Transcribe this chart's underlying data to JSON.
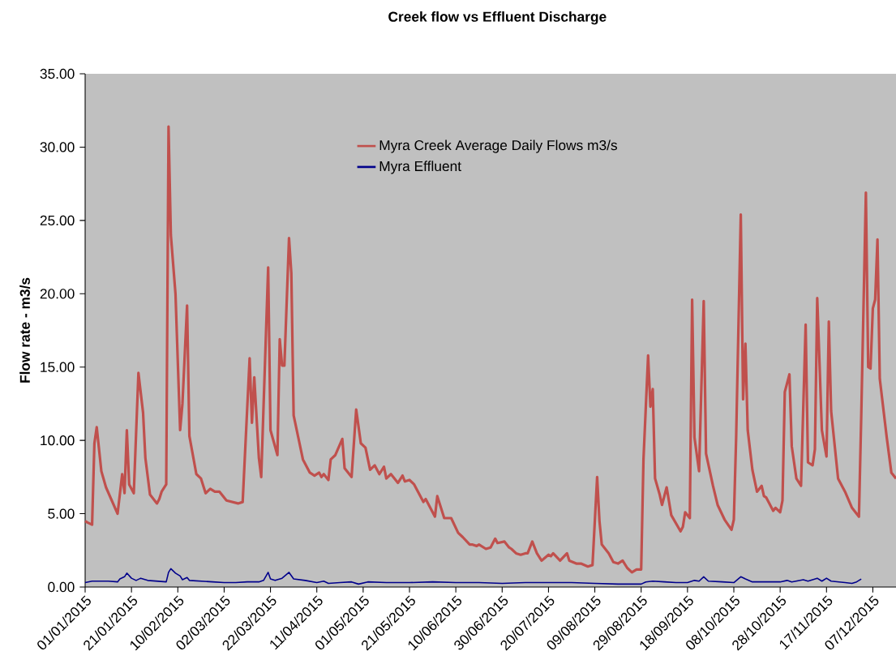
{
  "chart_data": {
    "type": "line",
    "title": "Creek flow vs Effluent Discharge",
    "ylabel": "Flow rate - m3/s",
    "xlim": [
      "2015-01-01",
      "2015-12-17"
    ],
    "ylim": [
      0,
      35
    ],
    "xticks": [
      {
        "value": "2015-01-01",
        "label": "01/01/2015"
      },
      {
        "value": "2015-01-21",
        "label": "21/01/2015"
      },
      {
        "value": "2015-02-10",
        "label": "10/02/2015"
      },
      {
        "value": "2015-03-02",
        "label": "02/03/2015"
      },
      {
        "value": "2015-03-22",
        "label": "22/03/2015"
      },
      {
        "value": "2015-04-11",
        "label": "11/04/2015"
      },
      {
        "value": "2015-05-01",
        "label": "01/05/2015"
      },
      {
        "value": "2015-05-21",
        "label": "21/05/2015"
      },
      {
        "value": "2015-06-10",
        "label": "10/06/2015"
      },
      {
        "value": "2015-06-30",
        "label": "30/06/2015"
      },
      {
        "value": "2015-07-20",
        "label": "20/07/2015"
      },
      {
        "value": "2015-08-09",
        "label": "09/08/2015"
      },
      {
        "value": "2015-08-29",
        "label": "29/08/2015"
      },
      {
        "value": "2015-09-18",
        "label": "18/09/2015"
      },
      {
        "value": "2015-10-08",
        "label": "08/10/2015"
      },
      {
        "value": "2015-10-28",
        "label": "28/10/2015"
      },
      {
        "value": "2015-11-17",
        "label": "17/11/2015"
      },
      {
        "value": "2015-12-07",
        "label": "07/12/2015"
      }
    ],
    "yticks": [
      {
        "value": 0,
        "label": "0.00"
      },
      {
        "value": 5,
        "label": "5.00"
      },
      {
        "value": 10,
        "label": "10.00"
      },
      {
        "value": 15,
        "label": "15.00"
      },
      {
        "value": 20,
        "label": "20.00"
      },
      {
        "value": 25,
        "label": "25.00"
      },
      {
        "value": 30,
        "label": "30.00"
      },
      {
        "value": 35,
        "label": "35.00"
      }
    ],
    "legend": "top",
    "grid": false,
    "series": [
      {
        "name": "Myra Creek Average Daily Flows m3/s",
        "color": "#c0504d",
        "x": [
          "2015-01-01",
          "2015-01-02",
          "2015-01-04",
          "2015-01-05",
          "2015-01-06",
          "2015-01-08",
          "2015-01-10",
          "2015-01-15",
          "2015-01-17",
          "2015-01-18",
          "2015-01-19",
          "2015-01-20",
          "2015-01-22",
          "2015-01-24",
          "2015-01-26",
          "2015-01-27",
          "2015-01-29",
          "2015-02-01",
          "2015-02-02",
          "2015-02-03",
          "2015-02-05",
          "2015-02-06",
          "2015-02-07",
          "2015-02-09",
          "2015-02-11",
          "2015-02-12",
          "2015-02-14",
          "2015-02-15",
          "2015-02-18",
          "2015-02-20",
          "2015-02-22",
          "2015-02-24",
          "2015-02-26",
          "2015-02-28",
          "2015-03-03",
          "2015-03-08",
          "2015-03-10",
          "2015-03-13",
          "2015-03-14",
          "2015-03-15",
          "2015-03-17",
          "2015-03-18",
          "2015-03-21",
          "2015-03-22",
          "2015-03-25",
          "2015-03-26",
          "2015-03-27",
          "2015-03-28",
          "2015-03-30",
          "2015-03-31",
          "2015-04-01",
          "2015-04-03",
          "2015-04-05",
          "2015-04-08",
          "2015-04-10",
          "2015-04-12",
          "2015-04-13",
          "2015-04-14",
          "2015-04-16",
          "2015-04-17",
          "2015-04-19",
          "2015-04-22",
          "2015-04-23",
          "2015-04-26",
          "2015-04-28",
          "2015-04-30",
          "2015-05-02",
          "2015-05-04",
          "2015-05-06",
          "2015-05-08",
          "2015-05-10",
          "2015-05-11",
          "2015-05-13",
          "2015-05-16",
          "2015-05-18",
          "2015-05-19",
          "2015-05-21",
          "2015-05-23",
          "2015-05-27",
          "2015-05-28",
          "2015-06-01",
          "2015-06-02",
          "2015-06-05",
          "2015-06-08",
          "2015-06-11",
          "2015-06-13",
          "2015-06-16",
          "2015-06-17",
          "2015-06-19",
          "2015-06-20",
          "2015-06-23",
          "2015-06-25",
          "2015-06-27",
          "2015-06-28",
          "2015-07-01",
          "2015-07-03",
          "2015-07-04",
          "2015-07-06",
          "2015-07-08",
          "2015-07-10",
          "2015-07-11",
          "2015-07-13",
          "2015-07-15",
          "2015-07-17",
          "2015-07-20",
          "2015-07-21",
          "2015-07-22",
          "2015-07-25",
          "2015-07-28",
          "2015-07-29",
          "2015-08-01",
          "2015-08-03",
          "2015-08-06",
          "2015-08-08",
          "2015-08-10",
          "2015-08-11",
          "2015-08-12",
          "2015-08-15",
          "2015-08-17",
          "2015-08-19",
          "2015-08-21",
          "2015-08-23",
          "2015-08-25",
          "2015-08-27",
          "2015-08-29",
          "2015-08-30",
          "2015-09-01",
          "2015-09-02",
          "2015-09-03",
          "2015-09-04",
          "2015-09-06",
          "2015-09-07",
          "2015-09-09",
          "2015-09-11",
          "2015-09-15",
          "2015-09-16",
          "2015-09-17",
          "2015-09-19",
          "2015-09-20",
          "2015-09-21",
          "2015-09-23",
          "2015-09-25",
          "2015-09-26",
          "2015-09-29",
          "2015-10-01",
          "2015-10-04",
          "2015-10-07",
          "2015-10-08",
          "2015-10-09",
          "2015-10-11",
          "2015-10-12",
          "2015-10-13",
          "2015-10-14",
          "2015-10-16",
          "2015-10-18",
          "2015-10-20",
          "2015-10-21",
          "2015-10-22",
          "2015-10-25",
          "2015-10-26",
          "2015-10-28",
          "2015-10-29",
          "2015-10-30",
          "2015-11-01",
          "2015-11-02",
          "2015-11-04",
          "2015-11-06",
          "2015-11-08",
          "2015-11-09",
          "2015-11-11",
          "2015-11-12",
          "2015-11-13",
          "2015-11-15",
          "2015-11-17",
          "2015-11-18",
          "2015-11-19",
          "2015-11-22",
          "2015-11-25",
          "2015-11-28",
          "2015-12-01",
          "2015-12-02",
          "2015-12-04",
          "2015-12-05",
          "2015-12-06",
          "2015-12-07",
          "2015-12-08",
          "2015-12-09",
          "2015-12-10",
          "2015-12-13",
          "2015-12-15",
          "2015-12-17"
        ],
        "values": [
          4.5,
          4.4,
          4.25,
          9.8,
          10.9,
          7.9,
          6.8,
          5.0,
          7.7,
          6.4,
          10.7,
          7.0,
          6.4,
          14.6,
          11.9,
          8.8,
          6.3,
          5.7,
          6.0,
          6.5,
          7.0,
          31.4,
          24.0,
          20.0,
          10.7,
          12.5,
          19.2,
          10.3,
          7.7,
          7.4,
          6.4,
          6.7,
          6.5,
          6.5,
          5.9,
          5.7,
          5.8,
          15.6,
          11.2,
          14.3,
          8.8,
          7.5,
          21.8,
          10.7,
          9.0,
          16.9,
          15.1,
          15.1,
          23.8,
          21.4,
          11.7,
          10.2,
          8.7,
          7.8,
          7.6,
          7.8,
          7.5,
          7.7,
          7.3,
          8.7,
          9.0,
          10.1,
          8.1,
          7.5,
          12.1,
          9.8,
          9.5,
          8.0,
          8.3,
          7.7,
          8.2,
          7.4,
          7.7,
          7.1,
          7.6,
          7.2,
          7.3,
          7.0,
          5.8,
          6.0,
          4.8,
          6.2,
          4.7,
          4.7,
          3.7,
          3.4,
          2.9,
          2.9,
          2.8,
          2.9,
          2.6,
          2.7,
          3.3,
          3.0,
          3.1,
          2.7,
          2.6,
          2.3,
          2.2,
          2.3,
          2.3,
          3.1,
          2.3,
          1.8,
          2.2,
          2.1,
          2.3,
          1.8,
          2.3,
          1.8,
          1.6,
          1.6,
          1.4,
          1.5,
          7.5,
          4.5,
          2.9,
          2.3,
          1.7,
          1.6,
          1.8,
          1.3,
          1.0,
          1.2,
          1.2,
          8.7,
          15.8,
          12.3,
          13.5,
          7.4,
          6.3,
          5.6,
          6.8,
          4.9,
          3.8,
          4.1,
          5.1,
          4.7,
          19.6,
          10.2,
          7.9,
          19.5,
          9.1,
          6.9,
          5.6,
          4.6,
          3.9,
          4.6,
          10.2,
          25.4,
          12.8,
          16.6,
          10.7,
          8.0,
          6.5,
          6.9,
          6.2,
          6.1,
          5.2,
          5.4,
          5.1,
          5.9,
          13.3,
          14.5,
          9.6,
          7.4,
          6.9,
          17.9,
          8.5,
          8.3,
          9.4,
          19.7,
          10.7,
          8.9,
          18.1,
          12.0,
          7.4,
          6.5,
          5.4,
          4.8,
          11.7,
          26.9,
          15.0,
          14.9,
          19.0,
          19.6,
          23.7,
          14.2,
          10.2,
          7.8,
          7.4
        ]
      },
      {
        "name": "Myra Effluent",
        "color": "#00008b",
        "x": [
          "2015-01-01",
          "2015-01-04",
          "2015-01-08",
          "2015-01-11",
          "2015-01-15",
          "2015-01-16",
          "2015-01-18",
          "2015-01-19",
          "2015-01-21",
          "2015-01-23",
          "2015-01-25",
          "2015-01-28",
          "2015-02-01",
          "2015-02-05",
          "2015-02-06",
          "2015-02-07",
          "2015-02-09",
          "2015-02-11",
          "2015-02-12",
          "2015-02-14",
          "2015-02-15",
          "2015-02-20",
          "2015-02-25",
          "2015-03-02",
          "2015-03-07",
          "2015-03-12",
          "2015-03-17",
          "2015-03-19",
          "2015-03-21",
          "2015-03-22",
          "2015-03-24",
          "2015-03-27",
          "2015-03-30",
          "2015-04-01",
          "2015-04-06",
          "2015-04-11",
          "2015-04-14",
          "2015-04-16",
          "2015-04-21",
          "2015-04-26",
          "2015-04-29",
          "2015-05-03",
          "2015-05-11",
          "2015-05-21",
          "2015-05-31",
          "2015-06-10",
          "2015-06-20",
          "2015-06-30",
          "2015-07-10",
          "2015-07-20",
          "2015-07-30",
          "2015-08-09",
          "2015-08-19",
          "2015-08-29",
          "2015-08-31",
          "2015-09-03",
          "2015-09-08",
          "2015-09-13",
          "2015-09-18",
          "2015-09-21",
          "2015-09-23",
          "2015-09-25",
          "2015-09-27",
          "2015-10-03",
          "2015-10-08",
          "2015-10-11",
          "2015-10-13",
          "2015-10-16",
          "2015-10-23",
          "2015-10-28",
          "2015-10-31",
          "2015-11-02",
          "2015-11-07",
          "2015-11-09",
          "2015-11-13",
          "2015-11-15",
          "2015-11-17",
          "2015-11-19",
          "2015-11-25",
          "2015-11-28",
          "2015-11-30",
          "2015-12-02"
        ],
        "values": [
          0.3,
          0.4,
          0.4,
          0.4,
          0.35,
          0.55,
          0.7,
          0.95,
          0.6,
          0.45,
          0.6,
          0.45,
          0.4,
          0.35,
          1.0,
          1.25,
          0.95,
          0.75,
          0.5,
          0.65,
          0.45,
          0.4,
          0.35,
          0.3,
          0.3,
          0.35,
          0.35,
          0.45,
          1.0,
          0.55,
          0.45,
          0.6,
          1.0,
          0.55,
          0.45,
          0.3,
          0.4,
          0.25,
          0.3,
          0.35,
          0.2,
          0.35,
          0.3,
          0.3,
          0.35,
          0.3,
          0.3,
          0.25,
          0.3,
          0.3,
          0.3,
          0.25,
          0.2,
          0.2,
          0.35,
          0.4,
          0.35,
          0.3,
          0.3,
          0.45,
          0.4,
          0.7,
          0.4,
          0.35,
          0.3,
          0.7,
          0.55,
          0.35,
          0.35,
          0.35,
          0.45,
          0.35,
          0.5,
          0.4,
          0.6,
          0.4,
          0.6,
          0.4,
          0.3,
          0.25,
          0.35,
          0.55
        ]
      }
    ]
  }
}
